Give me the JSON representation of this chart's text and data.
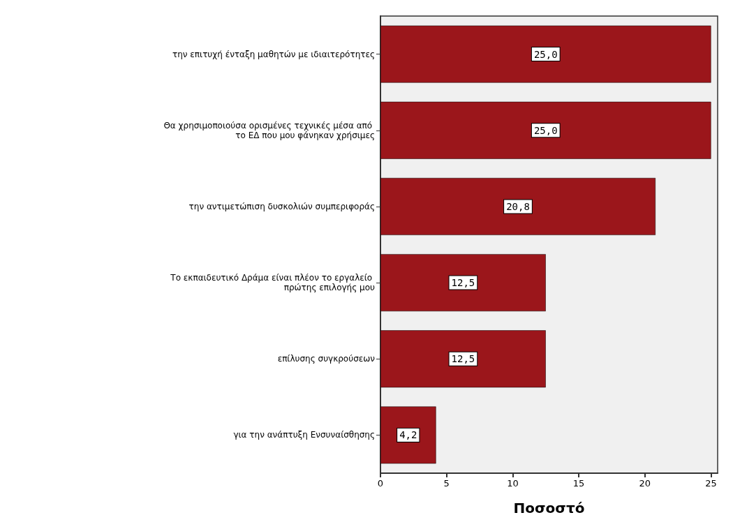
{
  "chart_data": {
    "type": "bar",
    "orientation": "horizontal",
    "xlabel": "Ποσοστό",
    "categories": [
      "την επιτυχή ένταξη μαθητών με ιδιαιτερότητες",
      "Θα χρησιμοποιούσα ορισμένες τεχνικές μέσα από το ΕΔ που μου φάνηκαν χρήσιμες",
      "την αντιμετώπιση δυσκολιών συμπεριφοράς",
      "Το εκπαιδευτικό Δράμα είναι πλέον το εργαλείο πρώτης επιλογής μου",
      "επίλυσης συγκρούσεων",
      "για την ανάπτυξη Ενσυναίσθησης"
    ],
    "values": [
      25.0,
      25.0,
      20.8,
      12.5,
      12.5,
      4.2
    ],
    "value_labels": [
      "25,0",
      "25,0",
      "20,8",
      "12,5",
      "12,5",
      "4,2"
    ],
    "color": "#9b161b",
    "xlim": [
      0,
      25.5
    ],
    "xticks": [
      0,
      5,
      10,
      15,
      20,
      25
    ],
    "grid": false
  }
}
